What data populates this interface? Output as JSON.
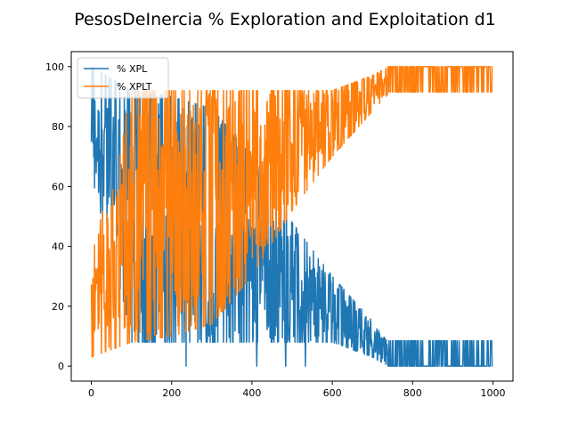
{
  "chart_data": {
    "type": "line",
    "title": "PesosDeInercia % Exploration and Exploitation d1",
    "xlabel": "",
    "ylabel": "",
    "xlim": [
      -50,
      1050
    ],
    "ylim": [
      -5,
      105
    ],
    "x_ticks": [
      0,
      200,
      400,
      600,
      800,
      1000
    ],
    "y_ticks": [
      0,
      20,
      40,
      60,
      80,
      100
    ],
    "legend_position": "top-left",
    "grid": false,
    "n_iterations": 1000,
    "series": [
      {
        "name": "% XPL",
        "color": "#1f77b4",
        "description": "exploration percentage; near 90-100 early, decays to ~45 by iteration 500, ~0-9 after 740",
        "envelope": [
          {
            "x": 0,
            "low": 64,
            "high": 100
          },
          {
            "x": 100,
            "low": 8,
            "high": 92
          },
          {
            "x": 200,
            "low": 8,
            "high": 90
          },
          {
            "x": 300,
            "low": 8,
            "high": 86
          },
          {
            "x": 400,
            "low": 8,
            "high": 70
          },
          {
            "x": 500,
            "low": 8,
            "high": 48
          },
          {
            "x": 600,
            "low": 8,
            "high": 30
          },
          {
            "x": 700,
            "low": 3,
            "high": 15
          },
          {
            "x": 740,
            "low": 0,
            "high": 9
          },
          {
            "x": 1000,
            "low": 0,
            "high": 9
          }
        ]
      },
      {
        "name": "% XPLT",
        "color": "#ff7f0e",
        "description": "exploitation percentage; complement of % XPL, rises to 91-100 after iteration 740",
        "envelope": [
          {
            "x": 0,
            "low": 3,
            "high": 36
          },
          {
            "x": 100,
            "low": 8,
            "high": 92
          },
          {
            "x": 200,
            "low": 10,
            "high": 92
          },
          {
            "x": 300,
            "low": 14,
            "high": 92
          },
          {
            "x": 400,
            "low": 30,
            "high": 92
          },
          {
            "x": 500,
            "low": 52,
            "high": 92
          },
          {
            "x": 600,
            "low": 70,
            "high": 92
          },
          {
            "x": 700,
            "low": 85,
            "high": 97
          },
          {
            "x": 740,
            "low": 91,
            "high": 100
          },
          {
            "x": 1000,
            "low": 91,
            "high": 100
          }
        ]
      }
    ]
  }
}
